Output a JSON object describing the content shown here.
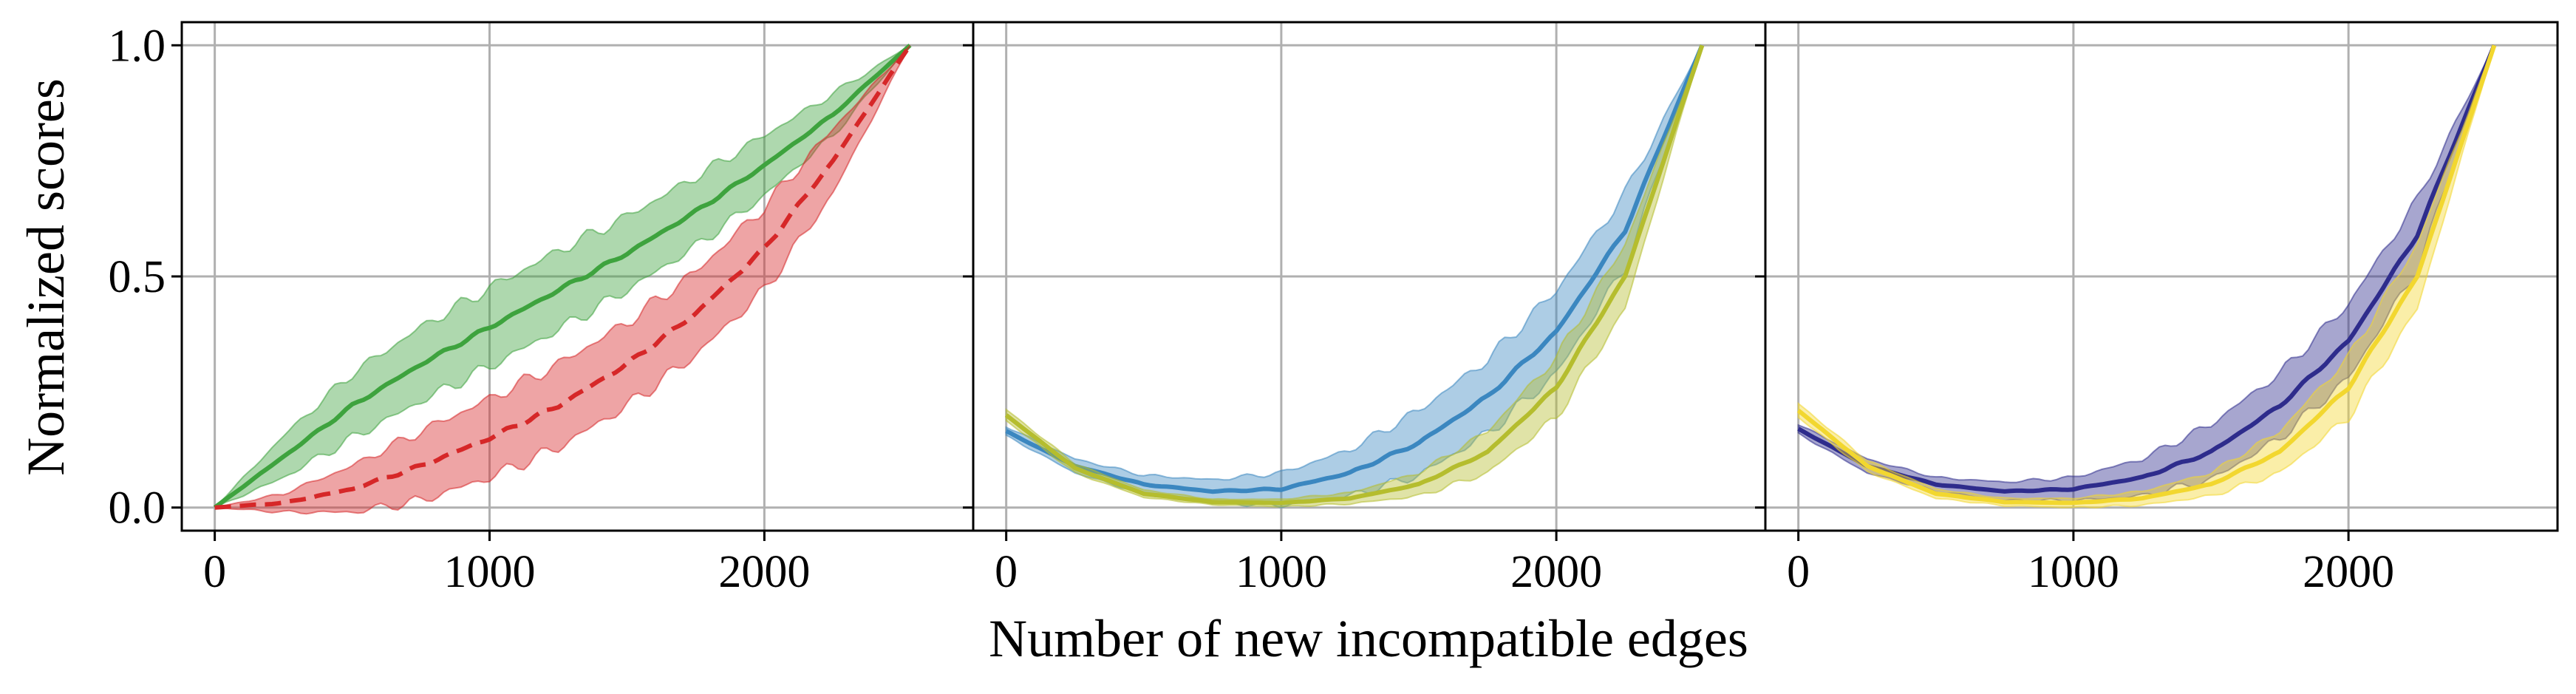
{
  "chart_data": {
    "type": "line",
    "xlabel": "Number of new incompatible edges",
    "ylabel": "Normalized scores",
    "x_ticks": [
      "0",
      "1000",
      "2000"
    ],
    "y_ticks": [
      "0.0",
      "0.5",
      "1.0"
    ],
    "xlim": [
      -120,
      2760
    ],
    "ylim": [
      -0.05,
      1.05
    ],
    "grid": true,
    "panels": [
      {
        "series": [
          {
            "color": "#3ea33e",
            "dash": false,
            "x": [
              0,
              250,
              500,
              750,
              1000,
              1250,
              1500,
              1750,
              2000,
              2250,
              2530
            ],
            "y": [
              0.0,
              0.11,
              0.22,
              0.31,
              0.39,
              0.47,
              0.55,
              0.64,
              0.74,
              0.85,
              1.0
            ],
            "band": [
              0.0,
              0.045,
              0.07,
              0.08,
              0.085,
              0.085,
              0.08,
              0.075,
              0.065,
              0.045,
              0.0
            ]
          },
          {
            "color": "#d62728",
            "dash": true,
            "x": [
              0,
              250,
              500,
              750,
              1000,
              1250,
              1500,
              1750,
              2000,
              2250,
              2530
            ],
            "y": [
              0.0,
              0.01,
              0.04,
              0.09,
              0.15,
              0.22,
              0.31,
              0.42,
              0.56,
              0.75,
              1.0
            ],
            "band": [
              0.0,
              0.02,
              0.05,
              0.075,
              0.085,
              0.09,
              0.09,
              0.09,
              0.09,
              0.07,
              0.0
            ]
          }
        ]
      },
      {
        "series": [
          {
            "color": "#3b87c0",
            "dash": false,
            "x": [
              0,
              250,
              500,
              750,
              1000,
              1250,
              1500,
              1750,
              2000,
              2250,
              2530
            ],
            "y": [
              0.165,
              0.09,
              0.05,
              0.035,
              0.04,
              0.075,
              0.14,
              0.24,
              0.38,
              0.6,
              1.0
            ],
            "band": [
              0.01,
              0.015,
              0.02,
              0.025,
              0.035,
              0.05,
              0.07,
              0.08,
              0.09,
              0.08,
              0.0
            ]
          },
          {
            "color": "#b5bd2e",
            "dash": false,
            "x": [
              0,
              250,
              500,
              750,
              1000,
              1250,
              1500,
              1750,
              2000,
              2250,
              2530
            ],
            "y": [
              0.2,
              0.085,
              0.03,
              0.012,
              0.01,
              0.02,
              0.05,
              0.12,
              0.26,
              0.5,
              1.0
            ],
            "band": [
              0.012,
              0.01,
              0.008,
              0.006,
              0.008,
              0.012,
              0.025,
              0.045,
              0.065,
              0.07,
              0.0
            ]
          }
        ]
      },
      {
        "series": [
          {
            "color": "#2e2c8c",
            "dash": false,
            "x": [
              0,
              250,
              500,
              750,
              1000,
              1250,
              1500,
              1750,
              2000,
              2250,
              2530
            ],
            "y": [
              0.17,
              0.09,
              0.05,
              0.035,
              0.04,
              0.065,
              0.12,
              0.22,
              0.36,
              0.59,
              1.0
            ],
            "band": [
              0.01,
              0.015,
              0.015,
              0.02,
              0.025,
              0.04,
              0.06,
              0.07,
              0.08,
              0.075,
              0.0
            ]
          },
          {
            "color": "#f2d72f",
            "dash": false,
            "x": [
              0,
              250,
              500,
              750,
              1000,
              1250,
              1500,
              1750,
              2000,
              2250,
              2530
            ],
            "y": [
              0.21,
              0.09,
              0.03,
              0.012,
              0.01,
              0.02,
              0.05,
              0.12,
              0.26,
              0.5,
              1.0
            ],
            "band": [
              0.015,
              0.012,
              0.01,
              0.008,
              0.01,
              0.015,
              0.025,
              0.045,
              0.065,
              0.07,
              0.0
            ]
          }
        ]
      }
    ]
  }
}
